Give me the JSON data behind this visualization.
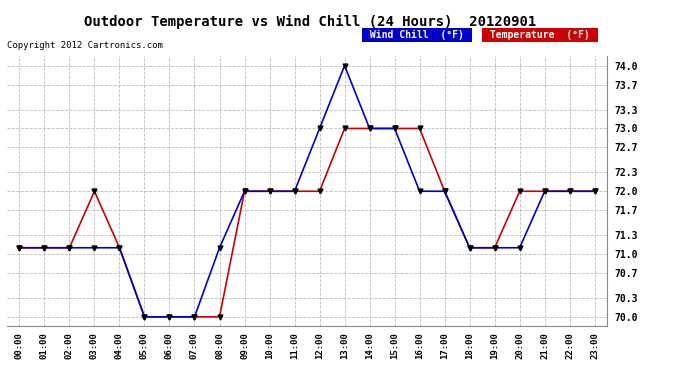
{
  "title": "Outdoor Temperature vs Wind Chill (24 Hours)  20120901",
  "copyright": "Copyright 2012 Cartronics.com",
  "hours": [
    "00:00",
    "01:00",
    "02:00",
    "03:00",
    "04:00",
    "05:00",
    "06:00",
    "07:00",
    "08:00",
    "09:00",
    "10:00",
    "11:00",
    "12:00",
    "13:00",
    "14:00",
    "15:00",
    "16:00",
    "17:00",
    "18:00",
    "19:00",
    "20:00",
    "21:00",
    "22:00",
    "23:00"
  ],
  "temperature": [
    71.1,
    71.1,
    71.1,
    72.0,
    71.1,
    70.0,
    70.0,
    70.0,
    70.0,
    72.0,
    72.0,
    72.0,
    72.0,
    73.0,
    73.0,
    73.0,
    73.0,
    72.0,
    71.1,
    71.1,
    72.0,
    72.0,
    72.0,
    72.0
  ],
  "wind_chill": [
    71.1,
    71.1,
    71.1,
    71.1,
    71.1,
    70.0,
    70.0,
    70.0,
    71.1,
    72.0,
    72.0,
    72.0,
    73.0,
    74.0,
    73.0,
    73.0,
    72.0,
    72.0,
    71.1,
    71.1,
    71.1,
    72.0,
    72.0,
    72.0
  ],
  "temp_color": "#cc0000",
  "wind_chill_color": "#0000cc",
  "ylim_min": 69.85,
  "ylim_max": 74.15,
  "yticks": [
    70.0,
    70.3,
    70.7,
    71.0,
    71.3,
    71.7,
    72.0,
    72.3,
    72.7,
    73.0,
    73.3,
    73.7,
    74.0
  ],
  "bg_color": "#ffffff",
  "plot_bg_color": "#ffffff",
  "grid_color": "#aaaaaa",
  "legend_wind_chill_bg": "#0000cc",
  "legend_temp_bg": "#cc0000",
  "legend_text_color": "#ffffff"
}
